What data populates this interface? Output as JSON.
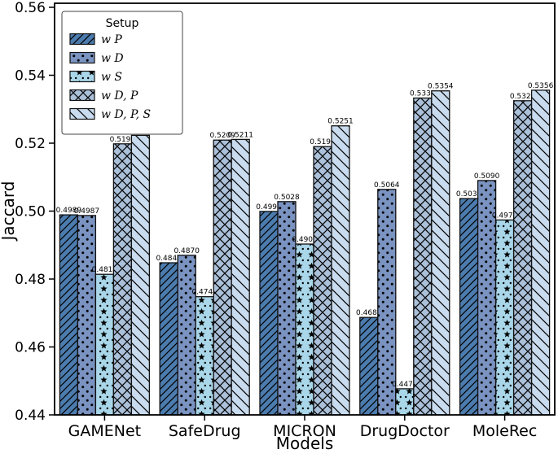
{
  "chart_data": {
    "type": "bar",
    "title": "",
    "xlabel": "Models",
    "ylabel": "Jaccard",
    "ylim": [
      0.44,
      0.56
    ],
    "yticks": [
      0.44,
      0.46,
      0.48,
      0.5,
      0.52,
      0.54,
      0.56
    ],
    "grid": false,
    "categories": [
      "GAMENet",
      "SafeDrug",
      "MICRON",
      "DrugDoctor",
      "MoleRec"
    ],
    "legend": {
      "title": "Setup",
      "position": "upper left"
    },
    "bar_label_decimals": 4,
    "edge_color": "#111111",
    "series": [
      {
        "name": "w P",
        "hatch": "/",
        "color": "#4c7cae",
        "values": [
          0.4989,
          0.4848,
          0.4999,
          0.4687,
          0.5037
        ]
      },
      {
        "name": "w D",
        "hatch": ".",
        "color": "#7a93c1",
        "values": [
          0.4987,
          0.487,
          0.5028,
          0.5064,
          0.509
        ]
      },
      {
        "name": "w S",
        "hatch": "*.",
        "color": "#a9d6e9",
        "values": [
          0.4814,
          0.4748,
          0.4903,
          0.4477,
          0.4974
        ]
      },
      {
        "name": "w D, P",
        "hatch": "xx",
        "color": "#abc0d9",
        "values": [
          0.5198,
          0.5209,
          0.519,
          0.5333,
          0.5325
        ]
      },
      {
        "name": "w D, P, S",
        "hatch": "\\",
        "color": "#c9dbee",
        "values": [
          0.5223,
          0.5211,
          0.5251,
          0.5354,
          0.5356
        ]
      }
    ]
  }
}
